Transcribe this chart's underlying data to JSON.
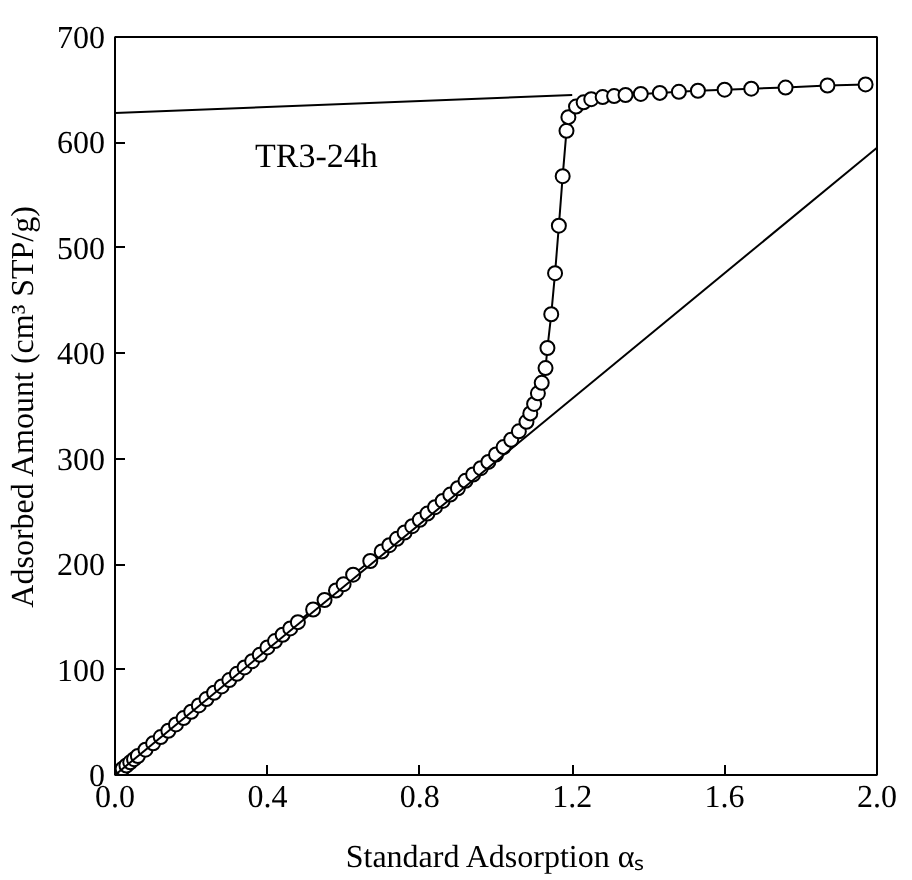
{
  "chart_data": {
    "type": "line",
    "xlabel": "Standard Adsorption αₛ",
    "ylabel": "Adsorbed Amount (cm³ STP/g)",
    "annotations": [
      "TR3-24h"
    ],
    "xlim": [
      0,
      2.0
    ],
    "xticks": [
      {
        "value": 0,
        "label": "0.0"
      },
      0.4,
      0.8,
      1.2,
      1.6,
      {
        "value": 2,
        "label": "2.0"
      }
    ],
    "ylim": [
      0,
      700
    ],
    "yticks": [
      0,
      100,
      200,
      300,
      400,
      500,
      600,
      700
    ],
    "grid": false,
    "series": [
      {
        "marker": "circle",
        "color": "#000000",
        "x": [
          0.01,
          0.02,
          0.03,
          0.04,
          0.05,
          0.06,
          0.08,
          0.1,
          0.12,
          0.14,
          0.16,
          0.18,
          0.2,
          0.22,
          0.24,
          0.26,
          0.28,
          0.3,
          0.32,
          0.34,
          0.36,
          0.38,
          0.4,
          0.42,
          0.44,
          0.46,
          0.48,
          0.52,
          0.55,
          0.58,
          0.6,
          0.625,
          0.67,
          0.7,
          0.72,
          0.74,
          0.76,
          0.78,
          0.8,
          0.82,
          0.84,
          0.86,
          0.88,
          0.9,
          0.92,
          0.94,
          0.96,
          0.98,
          1.0,
          1.02,
          1.04,
          1.06,
          1.08,
          1.09,
          1.1,
          1.11,
          1.12,
          1.13,
          1.135,
          1.145,
          1.155,
          1.165,
          1.175,
          1.185,
          1.19,
          1.21,
          1.23,
          1.25,
          1.28,
          1.31,
          1.34,
          1.38,
          1.43,
          1.48,
          1.53,
          1.6,
          1.67,
          1.76,
          1.87,
          1.97
        ],
        "values": [
          3,
          6,
          9,
          12,
          15,
          18,
          24,
          30,
          36,
          42,
          48,
          54,
          60,
          66,
          72,
          78,
          84,
          90,
          96,
          102,
          108,
          114,
          121,
          127,
          133,
          139,
          145,
          157,
          166,
          175,
          181,
          190,
          203,
          212,
          218,
          224,
          230,
          236,
          242,
          248,
          254,
          260,
          266,
          272,
          279,
          285,
          291,
          297,
          304,
          311,
          318,
          326,
          335,
          343,
          352,
          362,
          372,
          386,
          405,
          437,
          476,
          521,
          568,
          611,
          624,
          634,
          638,
          641,
          643,
          644,
          645,
          646,
          647,
          648,
          649,
          650,
          651,
          652,
          654,
          655
        ]
      },
      {
        "marker": "none",
        "color": "#000000",
        "x": [
          0,
          2.0
        ],
        "values": [
          0,
          595
        ]
      },
      {
        "marker": "none",
        "color": "#000000",
        "x": [
          0,
          1.2
        ],
        "values": [
          628,
          645
        ]
      }
    ]
  }
}
